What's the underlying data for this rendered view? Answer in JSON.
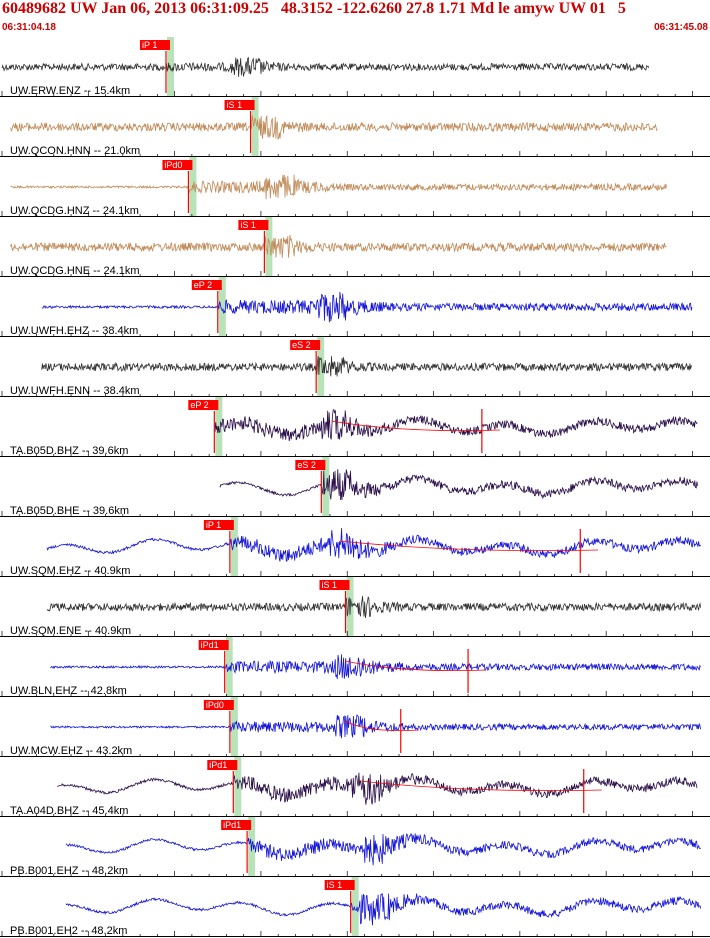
{
  "header": {
    "title": "60489682 UW Jan 06, 2013 06:31:09.25   48.3152 -122.6260 27.8 1.71 Md le amyw UW 01   5",
    "start_time": "06:31:04.18",
    "end_time": "06:31:45.08"
  },
  "colors": {
    "pick_red": "#ff0000",
    "pick_window": "#b8e2b8",
    "grid": "#000000"
  },
  "chart_data": {
    "type": "line",
    "title": "60489682 UW Jan 06, 2013 06:31:09.25   48.3152 -122.6260 27.8 1.71 Md le amyw UW 01   5",
    "x_start": "06:31:04.18",
    "x_end": "06:31:45.08",
    "x_range_seconds": [
      0,
      40.9
    ],
    "xlabel": "",
    "ylabel": "",
    "grid": true,
    "traces": [
      {
        "label": "UW.ERW.ENZ -- 15.4km",
        "color": "#303030",
        "start": 0.0,
        "end": 37.5,
        "pick": "iP 1",
        "pick_time": 9.5,
        "s_time": 13.3,
        "amplitude": 0.45,
        "wave": "noise"
      },
      {
        "label": "UW.QCON.HNN -- 21.0km",
        "color": "#c08a58",
        "start": 0.5,
        "end": 38.0,
        "pick": "iS 1",
        "pick_time": 14.4,
        "s_time": 14.4,
        "amplitude": 0.55,
        "wave": "noise"
      },
      {
        "label": "UW.QCDG.HNZ -- 24.1km",
        "color": "#c08a58",
        "start": 0.5,
        "end": 38.5,
        "pick": "iPd0",
        "pick_time": 10.8,
        "s_time": 15.2,
        "amplitude": 0.6,
        "wave": "quiet"
      },
      {
        "label": "UW.QCDG.HNE -- 24.1km",
        "color": "#c08a58",
        "start": 0.5,
        "end": 38.5,
        "pick": "iS 1",
        "pick_time": 15.2,
        "s_time": 15.2,
        "amplitude": 0.55,
        "wave": "noise"
      },
      {
        "label": "UW.UWFH.EHZ -- 38.4km",
        "color": "#1515d8",
        "start": 2.3,
        "end": 40.0,
        "pick": "eP 2",
        "pick_time": 12.5,
        "s_time": 18.2,
        "amplitude": 0.7,
        "wave": "quiet"
      },
      {
        "label": "UW.UWFH.ENN -- 38.4km",
        "color": "#303030",
        "start": 2.3,
        "end": 40.0,
        "pick": "eS 2",
        "pick_time": 18.2,
        "s_time": 18.2,
        "amplitude": 0.5,
        "wave": "noise"
      },
      {
        "label": "TA.B05D.BHZ -- 39.6km",
        "color": "#2a0f4a",
        "start": 12.3,
        "end": 40.3,
        "pick": "eP 2",
        "pick_time": 12.3,
        "s_time": 18.5,
        "amplitude": 0.75,
        "wave": "swell",
        "coda_time": 27.8
      },
      {
        "label": "TA.B05D.BHE -- 39.6km",
        "color": "#2a0f4a",
        "start": 12.6,
        "end": 40.3,
        "pick": "eS 2",
        "pick_time": 18.5,
        "s_time": 18.5,
        "amplitude": 0.75,
        "wave": "swell"
      },
      {
        "label": "UW.SQM.EHZ -- 40.9km",
        "color": "#1515d8",
        "start": 2.6,
        "end": 40.5,
        "pick": "iP 1",
        "pick_time": 13.2,
        "s_time": 19.0,
        "amplitude": 0.75,
        "wave": "swell",
        "coda_time": 33.5
      },
      {
        "label": "UW.SQM.ENE -- 40.9km",
        "color": "#303030",
        "start": 2.6,
        "end": 40.5,
        "pick": "iS 1",
        "pick_time": 19.9,
        "s_time": 19.9,
        "amplitude": 0.5,
        "wave": "noise"
      },
      {
        "label": "UW.BLN.EHZ -- 42.8km",
        "color": "#1515d8",
        "start": 2.8,
        "end": 40.5,
        "pick": "iPd1",
        "pick_time": 12.9,
        "s_time": 19.3,
        "amplitude": 0.6,
        "wave": "quiet",
        "coda_time": 27.0
      },
      {
        "label": "UW.MCW.EHZ -- 43.2km",
        "color": "#1515d8",
        "start": 2.8,
        "end": 40.5,
        "pick": "iPd0",
        "pick_time": 13.2,
        "s_time": 19.3,
        "amplitude": 0.55,
        "wave": "quiet",
        "coda_time": 23.1
      },
      {
        "label": "TA.A04D.BHZ -- 45.4km",
        "color": "#2a0f4a",
        "start": 3.2,
        "end": 40.3,
        "pick": "iPd1",
        "pick_time": 13.4,
        "s_time": 20.2,
        "amplitude": 0.75,
        "wave": "swell",
        "coda_time": 33.7
      },
      {
        "label": "PB.B001.EHZ -- 48.2km",
        "color": "#1515d8",
        "start": 3.7,
        "end": 40.5,
        "pick": "iPd1",
        "pick_time": 14.2,
        "s_time": 20.7,
        "amplitude": 0.7,
        "wave": "swell"
      },
      {
        "label": "PB.B001.EH2 -- 48.2km",
        "color": "#1515d8",
        "start": 3.7,
        "end": 40.5,
        "pick": "iS 1",
        "pick_time": 20.2,
        "s_time": 20.7,
        "amplitude": 0.7,
        "wave": "swell"
      }
    ]
  }
}
